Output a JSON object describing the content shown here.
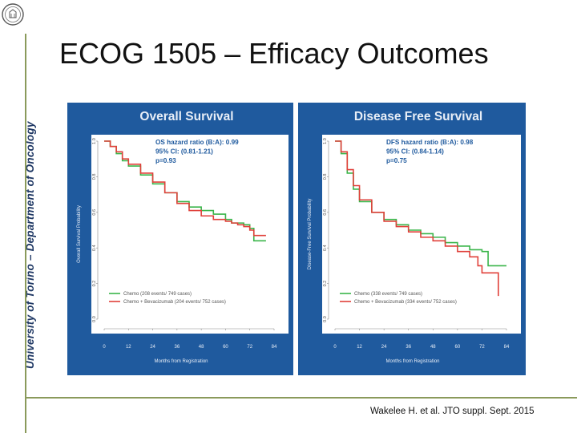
{
  "sidebar": {
    "university": "University of Torino – Department of Oncology"
  },
  "slide": {
    "title": "ECOG 1505 – Efficacy Outcomes",
    "citation": "Wakelee H. et al. JTO suppl. Sept. 2015"
  },
  "colors": {
    "panel_bg": "#1f5a9e",
    "plot_bg": "#ffffff",
    "chemo": "#3ab54a",
    "bev": "#e0403a",
    "title_text": "#e8eef7"
  },
  "chart_data": [
    {
      "type": "line",
      "title": "Overall Survival",
      "xlabel": "Months from Registration",
      "ylabel": "Overall Survival Probability",
      "x_ticks": [
        "0",
        "12",
        "24",
        "36",
        "48",
        "60",
        "72",
        "84"
      ],
      "y_ticks": [
        "0.0",
        "0.2",
        "0.4",
        "0.6",
        "0.8",
        "1.0"
      ],
      "xlim": [
        0,
        84
      ],
      "ylim": [
        0,
        1
      ],
      "annotation": [
        "OS hazard ratio (B:A): 0.99",
        "95% CI: (0.81-1.21)",
        "p=0.93"
      ],
      "series": [
        {
          "name": "Chemo (208 events/ 749 cases)",
          "color": "#3ab54a",
          "x": [
            0,
            3,
            6,
            9,
            12,
            18,
            24,
            30,
            36,
            42,
            48,
            54,
            60,
            63,
            66,
            69,
            72,
            74,
            78,
            80
          ],
          "y": [
            1.0,
            0.97,
            0.93,
            0.89,
            0.86,
            0.81,
            0.76,
            0.71,
            0.66,
            0.63,
            0.61,
            0.59,
            0.56,
            0.54,
            0.54,
            0.53,
            0.51,
            0.44,
            0.44,
            0.44
          ]
        },
        {
          "name": "Chemo + Bevacizumab  (204 events/ 752 cases)",
          "color": "#e0403a",
          "x": [
            0,
            3,
            6,
            9,
            12,
            18,
            24,
            30,
            36,
            42,
            48,
            54,
            60,
            63,
            66,
            69,
            72,
            74,
            78,
            80
          ],
          "y": [
            1.0,
            0.97,
            0.94,
            0.9,
            0.87,
            0.82,
            0.77,
            0.71,
            0.65,
            0.61,
            0.58,
            0.56,
            0.55,
            0.54,
            0.53,
            0.52,
            0.5,
            0.47,
            0.47,
            0.47
          ]
        }
      ]
    },
    {
      "type": "line",
      "title": "Disease Free Survival",
      "xlabel": "Months from Registration",
      "ylabel": "Disease-Free Survival Probability",
      "x_ticks": [
        "0",
        "12",
        "24",
        "36",
        "48",
        "60",
        "72",
        "84"
      ],
      "y_ticks": [
        "0.0",
        "0.2",
        "0.4",
        "0.6",
        "0.8",
        "1.0"
      ],
      "xlim": [
        0,
        84
      ],
      "ylim": [
        0,
        1
      ],
      "annotation": [
        "DFS hazard ratio (B:A): 0.98",
        "95% CI: (0.84-1.14)",
        "p=0.75"
      ],
      "series": [
        {
          "name": "Chemo (338 events/ 749 cases)",
          "color": "#3ab54a",
          "x": [
            0,
            3,
            6,
            9,
            12,
            18,
            24,
            30,
            36,
            42,
            48,
            54,
            60,
            66,
            72,
            75,
            78,
            84
          ],
          "y": [
            1.0,
            0.93,
            0.82,
            0.73,
            0.66,
            0.6,
            0.56,
            0.53,
            0.5,
            0.48,
            0.46,
            0.43,
            0.41,
            0.39,
            0.38,
            0.3,
            0.3,
            0.3
          ]
        },
        {
          "name": "Chemo + Bevacizumab  (334 events/ 752 cases)",
          "color": "#e0403a",
          "x": [
            0,
            3,
            6,
            9,
            12,
            18,
            24,
            30,
            36,
            42,
            48,
            54,
            60,
            66,
            70,
            72,
            78,
            80
          ],
          "y": [
            1.0,
            0.94,
            0.84,
            0.75,
            0.67,
            0.6,
            0.55,
            0.52,
            0.49,
            0.46,
            0.44,
            0.41,
            0.38,
            0.35,
            0.3,
            0.26,
            0.26,
            0.13
          ]
        }
      ]
    }
  ]
}
